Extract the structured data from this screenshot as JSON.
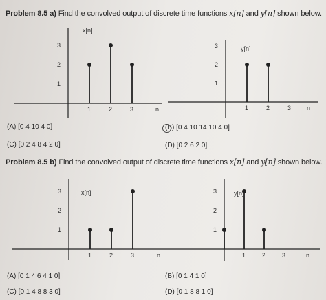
{
  "problem_a": {
    "label": "Problem 8.5 a)",
    "text": " Find the convolved output of discrete time functions ",
    "xn": "x[n]",
    "and": " and ",
    "yn": "y[n]",
    "tail": " shown below.",
    "options": {
      "a": "(A) [0 4 10 4 0]",
      "b": "(B) [0 4 10 14 10 4 0]",
      "c": "(C) [0 2 4 8 4 2 0]",
      "d": "(D) [0 2 6 2 0]"
    }
  },
  "problem_b": {
    "label": "Problem 8.5 b)",
    "text": " Find the convolved output of discrete time functions ",
    "xn": "x[n]",
    "and": " and ",
    "yn": "y[n]",
    "tail": " shown below.",
    "options": {
      "a": "(A) [0 1 4 6 4 1 0]",
      "b": "(B) [0 1 4 1 0]",
      "c": "(C) [0 1 4 8 8 3 0]",
      "d": "(D) [0 1 8 8 1 0]"
    }
  },
  "chart_data": [
    {
      "type": "stem",
      "title": "x[n]",
      "n_label": "n",
      "x_ticks": [
        "1",
        "2",
        "3"
      ],
      "y_ticks": [
        "1",
        "2",
        "3"
      ],
      "points": [
        {
          "x": 1,
          "y": 2
        },
        {
          "x": 2,
          "y": 3
        },
        {
          "x": 3,
          "y": 2
        }
      ]
    },
    {
      "type": "stem",
      "title": "y[n]",
      "n_label": "n",
      "x_ticks": [
        "1",
        "2",
        "3"
      ],
      "y_ticks": [
        "1",
        "2",
        "3"
      ],
      "points": [
        {
          "x": 1,
          "y": 2
        },
        {
          "x": 2,
          "y": 2
        }
      ]
    },
    {
      "type": "stem",
      "title": "x[n]",
      "n_label": "n",
      "x_ticks": [
        "1",
        "2",
        "3"
      ],
      "y_ticks": [
        "1",
        "2",
        "3"
      ],
      "points": [
        {
          "x": 1,
          "y": 1
        },
        {
          "x": 2,
          "y": 1
        },
        {
          "x": 3,
          "y": 3
        }
      ]
    },
    {
      "type": "stem",
      "title": "y[n]",
      "n_label": "n",
      "x_ticks": [
        "1",
        "2",
        "3"
      ],
      "y_ticks": [
        "1",
        "2",
        "3"
      ],
      "points": [
        {
          "x": 0,
          "y": 1
        },
        {
          "x": 1,
          "y": 3
        },
        {
          "x": 2,
          "y": 1
        }
      ]
    }
  ]
}
